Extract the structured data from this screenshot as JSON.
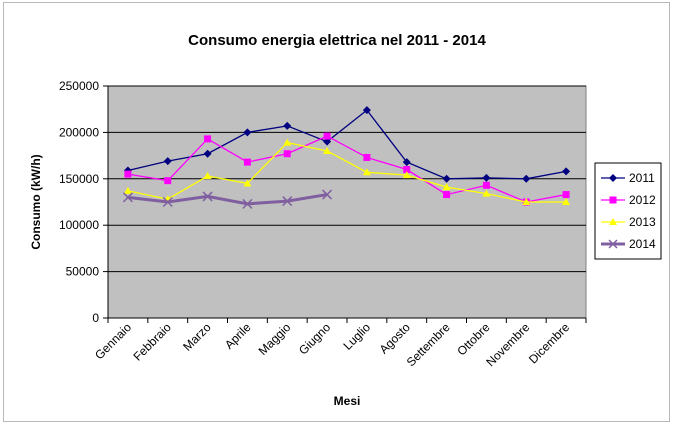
{
  "chart_data": {
    "type": "line",
    "title": "Consumo energia elettrica nel 2011 - 2014",
    "xlabel": "Mesi",
    "ylabel": "Consumo (kW/h)",
    "ylim": [
      0,
      250000
    ],
    "yticks": [
      "0",
      "50000",
      "100000",
      "150000",
      "200000",
      "250000"
    ],
    "categories": [
      "Gennaio",
      "Febbraio",
      "Marzo",
      "Aprile",
      "Maggio",
      "Giugno",
      "Luglio",
      "Agosto",
      "Settembre",
      "Ottobre",
      "Novembre",
      "Dicembre"
    ],
    "grid": true,
    "plot_background": "#c0c0c0",
    "legend_position": "right",
    "series": [
      {
        "name": "2011",
        "color": "#000080",
        "marker": "diamond",
        "values": [
          159000,
          169000,
          177000,
          200000,
          207000,
          190000,
          224000,
          168000,
          150000,
          151000,
          150000,
          158000
        ]
      },
      {
        "name": "2012",
        "color": "#ff00ff",
        "marker": "square",
        "values": [
          155000,
          148000,
          193000,
          168000,
          177000,
          196000,
          173000,
          160000,
          133000,
          143000,
          125000,
          133000
        ]
      },
      {
        "name": "2013",
        "color": "#ffff00",
        "marker": "triangle",
        "values": [
          137000,
          128000,
          153000,
          145000,
          189000,
          180000,
          157000,
          154000,
          141000,
          134000,
          125000,
          125000
        ]
      },
      {
        "name": "2014",
        "color": "#7f5fa0",
        "marker": "x",
        "values": [
          130000,
          125000,
          131000,
          123000,
          126000,
          133000,
          null,
          null,
          null,
          null,
          null,
          null
        ]
      }
    ]
  }
}
